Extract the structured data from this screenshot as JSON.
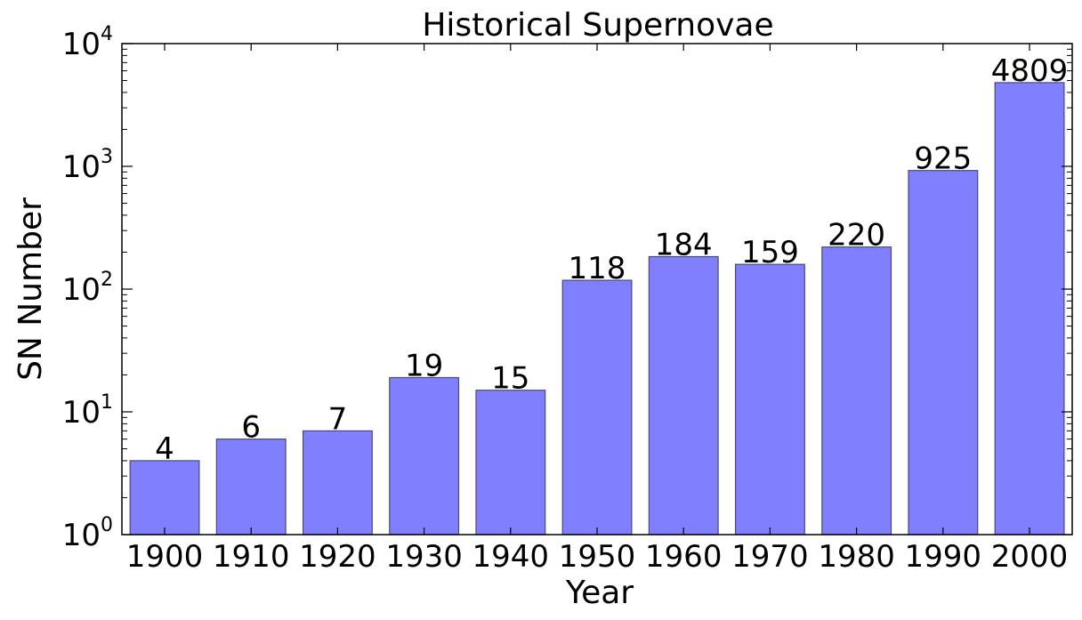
{
  "chart_data": {
    "type": "bar",
    "title": "Historical Supernovae",
    "xlabel": "Year",
    "ylabel": "SN Number",
    "yscale": "log",
    "ylim": [
      1,
      10000
    ],
    "grid": false,
    "categories": [
      "1900",
      "1910",
      "1920",
      "1930",
      "1940",
      "1950",
      "1960",
      "1970",
      "1980",
      "1990",
      "2000"
    ],
    "values": [
      4,
      6,
      7,
      19,
      15,
      118,
      184,
      159,
      220,
      925,
      4809
    ],
    "data_labels": [
      "4",
      "6",
      "7",
      "19",
      "15",
      "118",
      "184",
      "159",
      "220",
      "925",
      "4809"
    ],
    "yticks": [
      {
        "value": 1,
        "base": "10",
        "exp": "0"
      },
      {
        "value": 10,
        "base": "10",
        "exp": "1"
      },
      {
        "value": 100,
        "base": "10",
        "exp": "2"
      },
      {
        "value": 1000,
        "base": "10",
        "exp": "3"
      },
      {
        "value": 10000,
        "base": "10",
        "exp": "4"
      }
    ],
    "colors": {
      "bar_fill": "#8080ff",
      "bar_stroke": "#4a4a7a",
      "axis": "#000000"
    }
  }
}
